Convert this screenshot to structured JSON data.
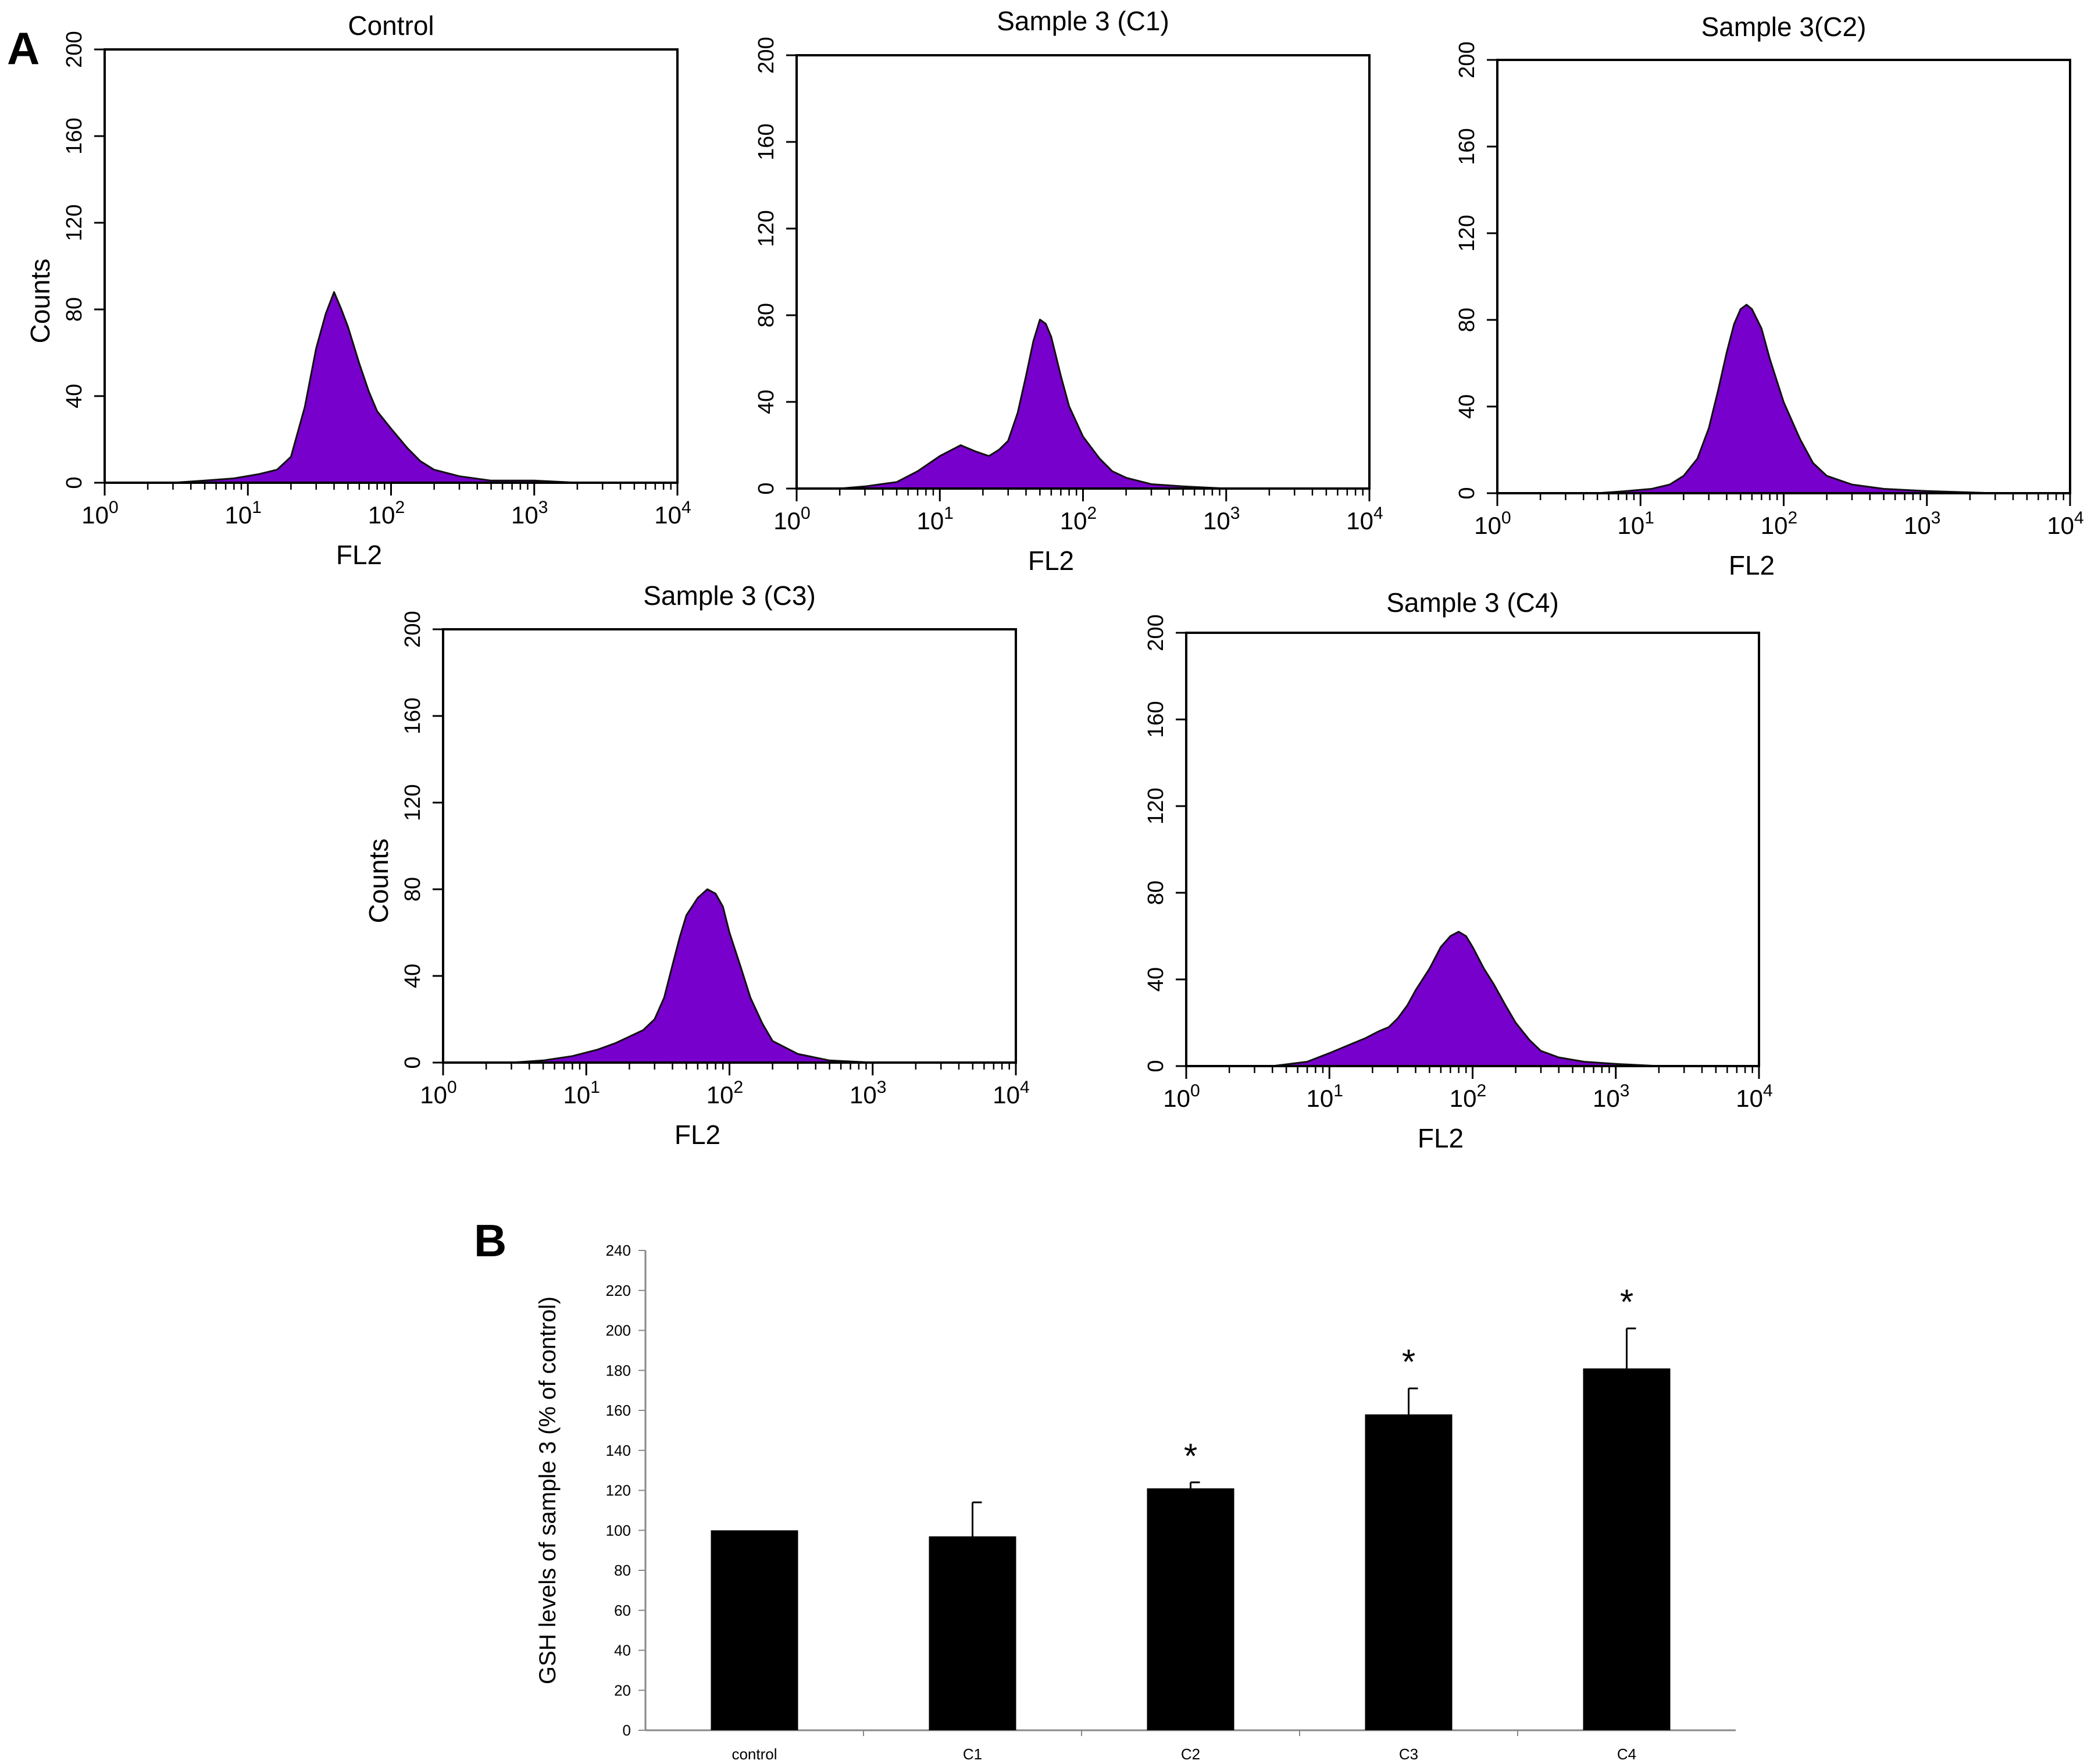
{
  "figure": {
    "panel_a_label": "A",
    "panel_b_label": "B",
    "histogram_fill": "#7700cc",
    "bar_fill": "#000000"
  },
  "chart_data": [
    {
      "type": "area",
      "title": "Control",
      "xlabel": "FL2",
      "ylabel": "Counts",
      "xscale": "log",
      "xlim": [
        1,
        10000
      ],
      "ylim": [
        0,
        200
      ],
      "yticks": [
        0,
        40,
        80,
        120,
        160,
        200
      ],
      "xticks": [
        "10",
        "10",
        "10",
        "10",
        "10"
      ],
      "xtick_exponents": [
        "0",
        "1",
        "2",
        "3",
        "4"
      ],
      "x": [
        1,
        2,
        3,
        5,
        8,
        12,
        16,
        20,
        25,
        30,
        35,
        40,
        45,
        50,
        60,
        70,
        80,
        100,
        130,
        160,
        200,
        300,
        500,
        1000,
        2000,
        10000
      ],
      "series": [
        {
          "name": "Control",
          "values": [
            0,
            0,
            0,
            1,
            2,
            4,
            6,
            12,
            35,
            62,
            78,
            88,
            80,
            72,
            55,
            42,
            33,
            25,
            16,
            10,
            6,
            3,
            1,
            1,
            0,
            0
          ]
        }
      ]
    },
    {
      "type": "area",
      "title": "Sample 3 (C1)",
      "xlabel": "FL2",
      "ylabel": "",
      "xscale": "log",
      "xlim": [
        1,
        10000
      ],
      "ylim": [
        0,
        200
      ],
      "yticks": [
        0,
        40,
        80,
        120,
        160,
        200
      ],
      "xticks": [
        "10",
        "10",
        "10",
        "10",
        "10"
      ],
      "xtick_exponents": [
        "0",
        "1",
        "2",
        "3",
        "4"
      ],
      "x": [
        1,
        2,
        3,
        5,
        7,
        10,
        14,
        18,
        22,
        26,
        30,
        35,
        40,
        45,
        50,
        55,
        60,
        70,
        80,
        100,
        130,
        160,
        200,
        300,
        500,
        1000,
        10000
      ],
      "series": [
        {
          "name": "Sample 3 (C1)",
          "values": [
            0,
            0,
            1,
            3,
            8,
            15,
            20,
            17,
            15,
            18,
            22,
            35,
            52,
            68,
            78,
            76,
            70,
            52,
            38,
            24,
            14,
            8,
            5,
            2,
            1,
            0,
            0
          ]
        }
      ]
    },
    {
      "type": "area",
      "title": "Sample 3(C2)",
      "xlabel": "FL2",
      "ylabel": "",
      "xscale": "log",
      "xlim": [
        1,
        10000
      ],
      "ylim": [
        0,
        200
      ],
      "yticks": [
        0,
        40,
        80,
        120,
        160,
        200
      ],
      "xticks": [
        "10",
        "10",
        "10",
        "10",
        "10"
      ],
      "xtick_exponents": [
        "0",
        "1",
        "2",
        "3",
        "4"
      ],
      "x": [
        1,
        5,
        8,
        12,
        16,
        20,
        25,
        30,
        35,
        40,
        45,
        50,
        55,
        60,
        70,
        80,
        100,
        130,
        160,
        200,
        300,
        500,
        1000,
        3000,
        10000
      ],
      "series": [
        {
          "name": "Sample 3(C2)",
          "values": [
            0,
            0,
            1,
            2,
            4,
            8,
            16,
            30,
            48,
            65,
            78,
            85,
            87,
            85,
            76,
            62,
            42,
            25,
            14,
            8,
            4,
            2,
            1,
            0,
            0
          ]
        }
      ]
    },
    {
      "type": "area",
      "title": "Sample 3 (C3)",
      "xlabel": "FL2",
      "ylabel": "Counts",
      "xscale": "log",
      "xlim": [
        1,
        10000
      ],
      "ylim": [
        0,
        200
      ],
      "yticks": [
        0,
        40,
        80,
        120,
        160,
        200
      ],
      "xticks": [
        "10",
        "10",
        "10",
        "10",
        "10"
      ],
      "xtick_exponents": [
        "0",
        "1",
        "2",
        "3",
        "4"
      ],
      "x": [
        1,
        3,
        5,
        8,
        12,
        16,
        20,
        25,
        30,
        35,
        40,
        45,
        50,
        60,
        70,
        80,
        90,
        100,
        120,
        140,
        170,
        200,
        300,
        500,
        1000,
        10000
      ],
      "series": [
        {
          "name": "Sample 3 (C3)",
          "values": [
            0,
            0,
            1,
            3,
            6,
            9,
            12,
            15,
            20,
            30,
            45,
            58,
            68,
            76,
            80,
            78,
            72,
            60,
            44,
            30,
            18,
            10,
            4,
            1,
            0,
            0
          ]
        }
      ]
    },
    {
      "type": "area",
      "title": "Sample 3 (C4)",
      "xlabel": "FL2",
      "ylabel": "",
      "xscale": "log",
      "xlim": [
        1,
        10000
      ],
      "ylim": [
        0,
        200
      ],
      "yticks": [
        0,
        40,
        80,
        120,
        160,
        200
      ],
      "xticks": [
        "10",
        "10",
        "10",
        "10",
        "10"
      ],
      "xtick_exponents": [
        "0",
        "1",
        "2",
        "3",
        "4"
      ],
      "x": [
        1,
        4,
        7,
        10,
        14,
        18,
        22,
        26,
        30,
        35,
        40,
        50,
        60,
        70,
        80,
        90,
        100,
        120,
        140,
        170,
        200,
        250,
        300,
        400,
        600,
        1000,
        2000,
        10000
      ],
      "series": [
        {
          "name": "Sample 3 (C4)",
          "values": [
            0,
            0,
            2,
            6,
            10,
            13,
            16,
            18,
            22,
            28,
            35,
            45,
            55,
            60,
            62,
            60,
            55,
            45,
            38,
            28,
            20,
            12,
            7,
            4,
            2,
            1,
            0,
            0
          ]
        }
      ]
    },
    {
      "type": "bar",
      "title": "",
      "xlabel": "",
      "ylabel": "GSH levels of sample 3 (% of control)",
      "categories": [
        "control",
        "C1",
        "C2",
        "C3",
        "C4"
      ],
      "values": [
        100,
        97,
        121,
        158,
        181
      ],
      "errors": [
        0,
        17,
        3,
        13,
        20
      ],
      "significance": [
        "",
        "",
        "*",
        "*",
        "*"
      ],
      "ylim": [
        0,
        240
      ],
      "yticks": [
        0,
        20,
        40,
        60,
        80,
        100,
        120,
        140,
        160,
        180,
        200,
        220,
        240
      ]
    }
  ]
}
